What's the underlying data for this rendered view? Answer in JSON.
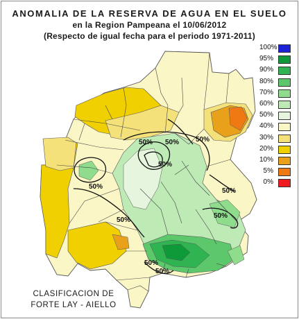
{
  "title": {
    "line1": "ANOMALIA DE LA RESERVA DE AGUA EN EL SUELO",
    "line2": "en la Region Pampeana el   10/06/2012",
    "line3": "(Respecto de igual fecha para el periodo 1971-2011)"
  },
  "legend": {
    "items": [
      {
        "label": "100%",
        "color": "#1c22d8"
      },
      {
        "label": "95%",
        "color": "#0f9a3a"
      },
      {
        "label": "90%",
        "color": "#2fb451"
      },
      {
        "label": "80%",
        "color": "#5dc76c"
      },
      {
        "label": "70%",
        "color": "#8fdc8d"
      },
      {
        "label": "60%",
        "color": "#bdeab5"
      },
      {
        "label": "50%",
        "color": "#e6f6de"
      },
      {
        "label": "40%",
        "color": "#fbf6c6"
      },
      {
        "label": "30%",
        "color": "#f4e17a"
      },
      {
        "label": "20%",
        "color": "#f0d000"
      },
      {
        "label": "10%",
        "color": "#e9a11c"
      },
      {
        "label": "5%",
        "color": "#ef7a14"
      },
      {
        "label": "0%",
        "color": "#ee1c1c"
      }
    ]
  },
  "contour_labels": [
    "50%",
    "50%",
    "50%",
    "50%",
    "50%",
    "50%",
    "50%",
    "50%",
    "50%",
    "50%"
  ],
  "footer": {
    "line1": "CLASIFICACION DE",
    "line2": "FORTE LAY - AIELLO"
  }
}
